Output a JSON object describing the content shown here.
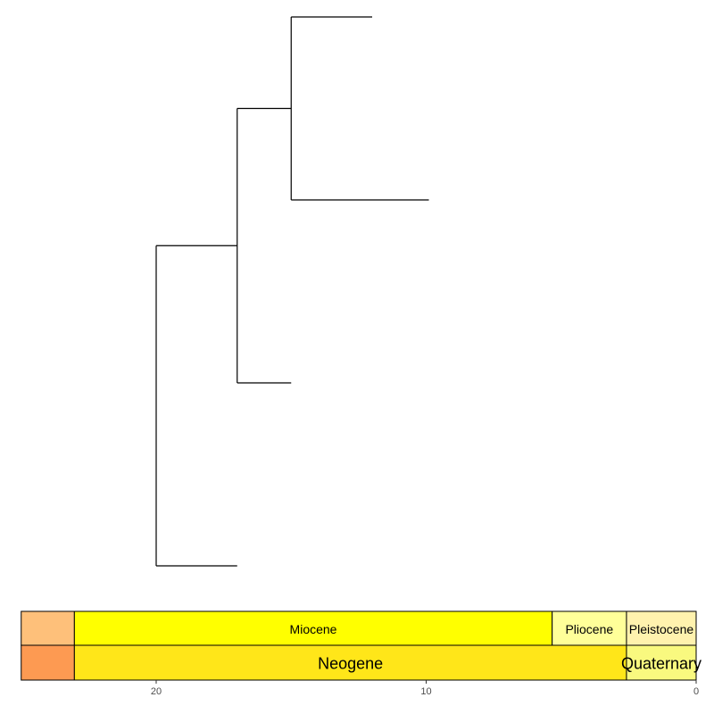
{
  "chart_data": {
    "type": "phylogenetic-tree-with-timescale",
    "x_axis": {
      "reversed": true,
      "ticks": [
        20,
        10,
        0
      ],
      "tick_labels": [
        "20",
        "10",
        "0"
      ]
    },
    "tree": {
      "tips": [
        {
          "id": "tip-1",
          "age": 12.0
        },
        {
          "id": "tip-2",
          "age": 9.9
        },
        {
          "id": "tip-3",
          "age": 15.0
        },
        {
          "id": "tip-4",
          "age": 17.0
        }
      ],
      "nodes": [
        {
          "id": "root",
          "age": 20.0,
          "children": [
            "node-a",
            "tip-4"
          ]
        },
        {
          "id": "node-a",
          "age": 17.0,
          "children": [
            "node-b",
            "tip-3"
          ]
        },
        {
          "id": "node-b",
          "age": 15.0,
          "children": [
            "tip-1",
            "tip-2"
          ]
        }
      ]
    },
    "timescale": {
      "epochs": [
        {
          "name": "",
          "start": 25.0,
          "end": 23.03,
          "color": "#FEC07A"
        },
        {
          "name": "Miocene",
          "start": 23.03,
          "end": 5.333,
          "color": "#FFFF00"
        },
        {
          "name": "Pliocene",
          "start": 5.333,
          "end": 2.58,
          "color": "#FFFF99"
        },
        {
          "name": "Pleistocene",
          "start": 2.58,
          "end": 0.0,
          "color": "#FFF2AE"
        }
      ],
      "periods": [
        {
          "name": "",
          "start": 25.0,
          "end": 23.03,
          "color": "#FD9A52"
        },
        {
          "name": "Neogene",
          "start": 23.03,
          "end": 2.58,
          "color": "#FFE619"
        },
        {
          "name": "Quaternary",
          "start": 2.58,
          "end": 0.0,
          "color": "#F9F97F"
        }
      ]
    }
  }
}
